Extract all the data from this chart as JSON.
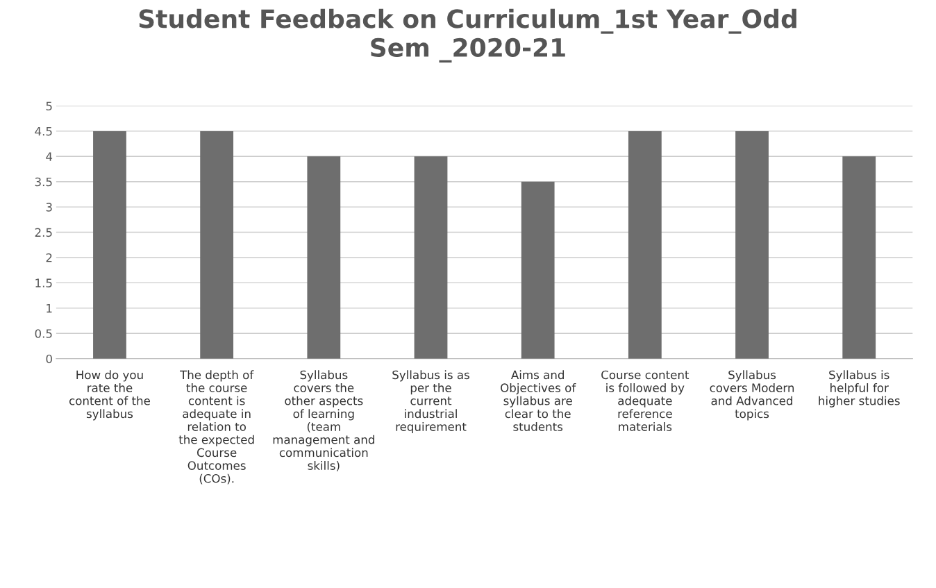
{
  "chart_data": {
    "type": "bar",
    "title": "Student Feedback on Curriculum_1st Year_Odd Sem _2020-21",
    "categories": [
      "How do you rate the content of the syllabus",
      "The depth of the course content is adequate in relation to the expected Course Outcomes (COs).",
      "Syllabus covers the other aspects of learning (team management and communication skills)",
      "Syllabus is as per the current industrial requirement",
      "Aims and Objectives of syllabus are clear to the students",
      "Course content is followed by adequate reference materials",
      "Syllabus covers Modern and Advanced topics",
      "Syllabus is helpful for higher studies"
    ],
    "values": [
      4.5,
      4.5,
      4,
      4,
      3.5,
      4.5,
      4.5,
      4
    ],
    "color": "#6e6e6e",
    "ylim": [
      0,
      5
    ],
    "yticks": [
      0,
      0.5,
      1,
      1.5,
      2,
      2.5,
      3,
      3.5,
      4,
      4.5,
      5
    ],
    "grid": "y"
  }
}
